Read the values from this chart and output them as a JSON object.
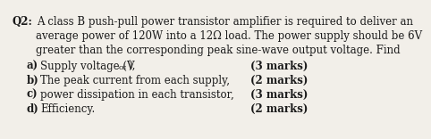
{
  "background_color": "#f2efe9",
  "text_color": "#1a1a1a",
  "q_label": "Q2:",
  "line1": "A class B push-pull power transistor amplifier is required to deliver an",
  "line2": "average power of 120W into a 12Ω load. The power supply should be 6V",
  "line3": "greater than the corresponding peak sine-wave output voltage. Find",
  "item_a_text": "Supply voltage (V",
  "item_a_sub": "cc",
  "item_a_post": "),",
  "item_b_text": "The peak current from each supply,",
  "item_c_text": "power dissipation in each transistor,",
  "item_d_text": "Efficiency.",
  "marks": [
    "(3 marks)",
    "(2 marks)",
    "(3 marks)",
    "(2 marks)"
  ],
  "font_size": 8.5,
  "font_size_sub": 6.0,
  "font_family": "DejaVu Serif"
}
